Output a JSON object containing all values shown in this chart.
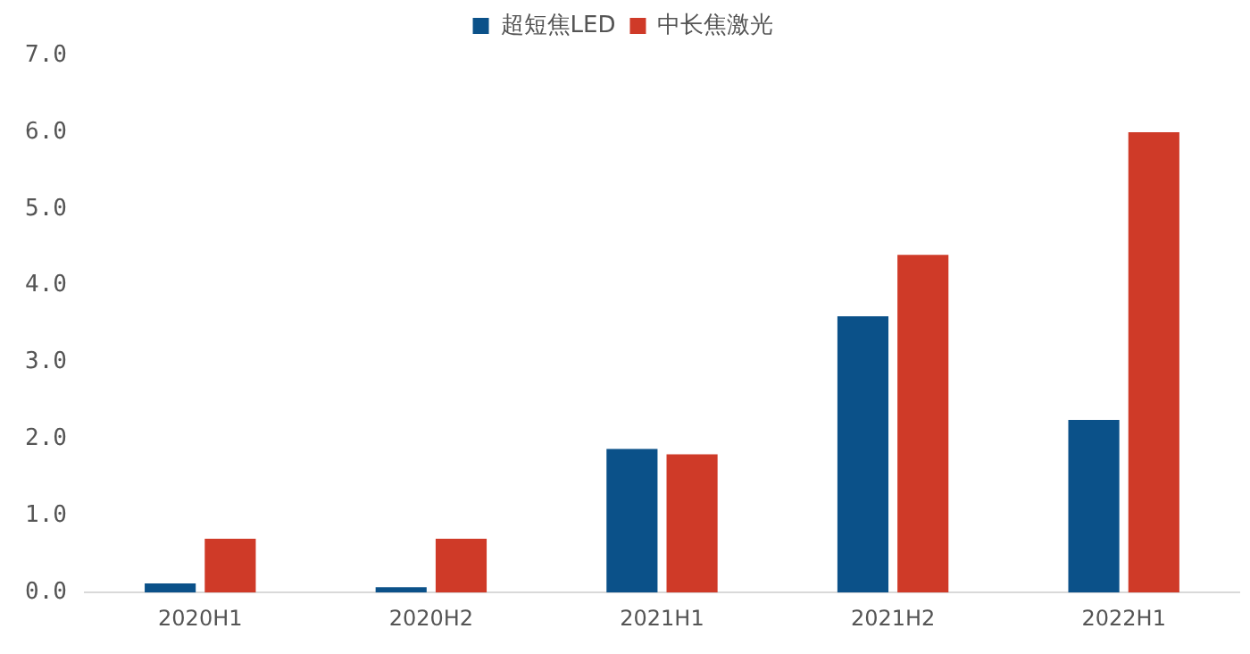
{
  "chart_data": {
    "type": "bar",
    "categories": [
      "2020H1",
      "2020H2",
      "2021H1",
      "2021H2",
      "2022H1"
    ],
    "series": [
      {
        "name": "超短焦LED",
        "color": "#0b5189",
        "values": [
          0.12,
          0.07,
          1.87,
          3.6,
          2.25
        ]
      },
      {
        "name": "中长焦激光",
        "color": "#cf3a28",
        "values": [
          0.7,
          0.7,
          1.8,
          4.4,
          6.0
        ]
      }
    ],
    "ylim": [
      0,
      7
    ],
    "yticks": [
      {
        "value": 0,
        "label": "0.0"
      },
      {
        "value": 1,
        "label": "1.0"
      },
      {
        "value": 2,
        "label": "2.0"
      },
      {
        "value": 3,
        "label": "3.0"
      },
      {
        "value": 4,
        "label": "4.0"
      },
      {
        "value": 5,
        "label": "5.0"
      },
      {
        "value": 6,
        "label": "6.0"
      },
      {
        "value": 7,
        "label": "7.0"
      }
    ],
    "grid": false,
    "legend": "top"
  }
}
